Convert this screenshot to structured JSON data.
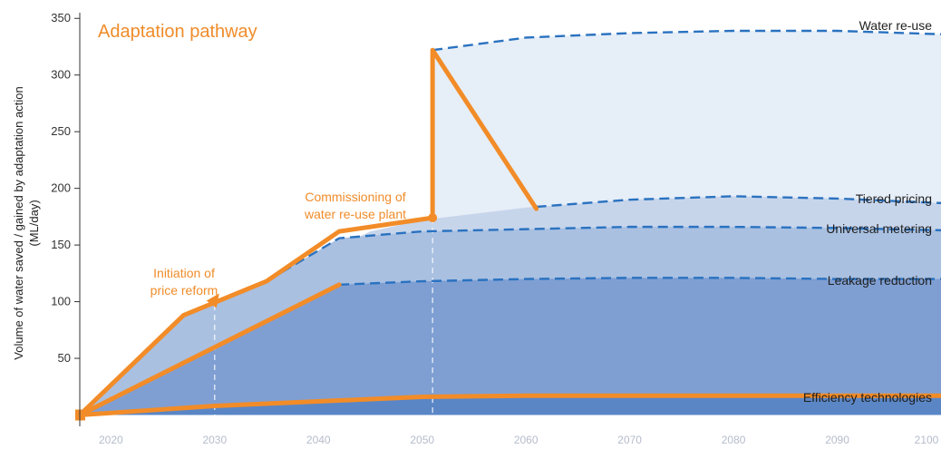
{
  "colors": {
    "band_reuse": "#e6eef8",
    "band_pricing": "#c7d5eb",
    "band_metering": "#a9c0e1",
    "band_leakage": "#7f9fd3",
    "band_efficiency": "#5a86c6",
    "dashed_line": "#2a72c0",
    "pathway": "#f28c28",
    "axis": "#333333",
    "guide": "#ffffff"
  },
  "chart_data": {
    "type": "area",
    "title": "Adaptation pathway",
    "xlabel": "",
    "ylabel": "Volume of water saved / gained by adaptation action (ML/day)",
    "xlim": [
      2017,
      2100
    ],
    "ylim": [
      -10,
      355
    ],
    "yticks": [
      50,
      100,
      150,
      200,
      250,
      300,
      350
    ],
    "xticks": [
      2020,
      2030,
      2040,
      2050,
      2060,
      2070,
      2080,
      2090,
      2100
    ],
    "xtick_labels": [
      "2020",
      "2030",
      "2040",
      "2050",
      "2060",
      "2070",
      "2080",
      "2090",
      "2100"
    ],
    "grid": false,
    "series": [
      {
        "name": "Water re-use",
        "x": [
          2051,
          2060,
          2070,
          2080,
          2090,
          2100
        ],
        "values": [
          322,
          333,
          337,
          339,
          339,
          336
        ]
      },
      {
        "name": "Tiered pricing",
        "x": [
          2027,
          2035,
          2045,
          2050,
          2060,
          2070,
          2080,
          2090,
          2100
        ],
        "values": [
          88,
          118,
          162,
          172,
          183,
          190,
          193,
          191,
          187
        ]
      },
      {
        "name": "Universal metering",
        "x": [
          2017,
          2027,
          2035,
          2042,
          2050,
          2060,
          2070,
          2080,
          2090,
          2100
        ],
        "values": [
          0,
          88,
          118,
          156,
          162,
          164,
          166,
          166,
          165,
          163
        ]
      },
      {
        "name": "Leakage reduction",
        "x": [
          2017,
          2042,
          2050,
          2060,
          2070,
          2080,
          2090,
          2100
        ],
        "values": [
          0,
          115,
          118,
          120,
          121,
          121,
          120,
          120
        ]
      },
      {
        "name": "Efficiency technologies",
        "x": [
          2017,
          2030,
          2040,
          2050,
          2060,
          2070,
          2080,
          2090,
          2100
        ],
        "values": [
          0,
          8,
          12,
          16,
          17,
          17,
          17,
          17,
          17
        ]
      }
    ],
    "pathway": {
      "x": [
        2017,
        2027,
        2035,
        2042,
        2051,
        2051,
        2061
      ],
      "values": [
        0,
        88,
        118,
        162,
        174,
        322,
        182
      ]
    },
    "vertical_guides": [
      2030,
      2051
    ],
    "annotations": [
      {
        "lines": [
          "Initiation of",
          "price reform"
        ],
        "x": 2030,
        "value": 105
      },
      {
        "lines": [
          "Commissioning of",
          "water re-use plant"
        ],
        "x": 2051,
        "value": 174
      }
    ]
  }
}
